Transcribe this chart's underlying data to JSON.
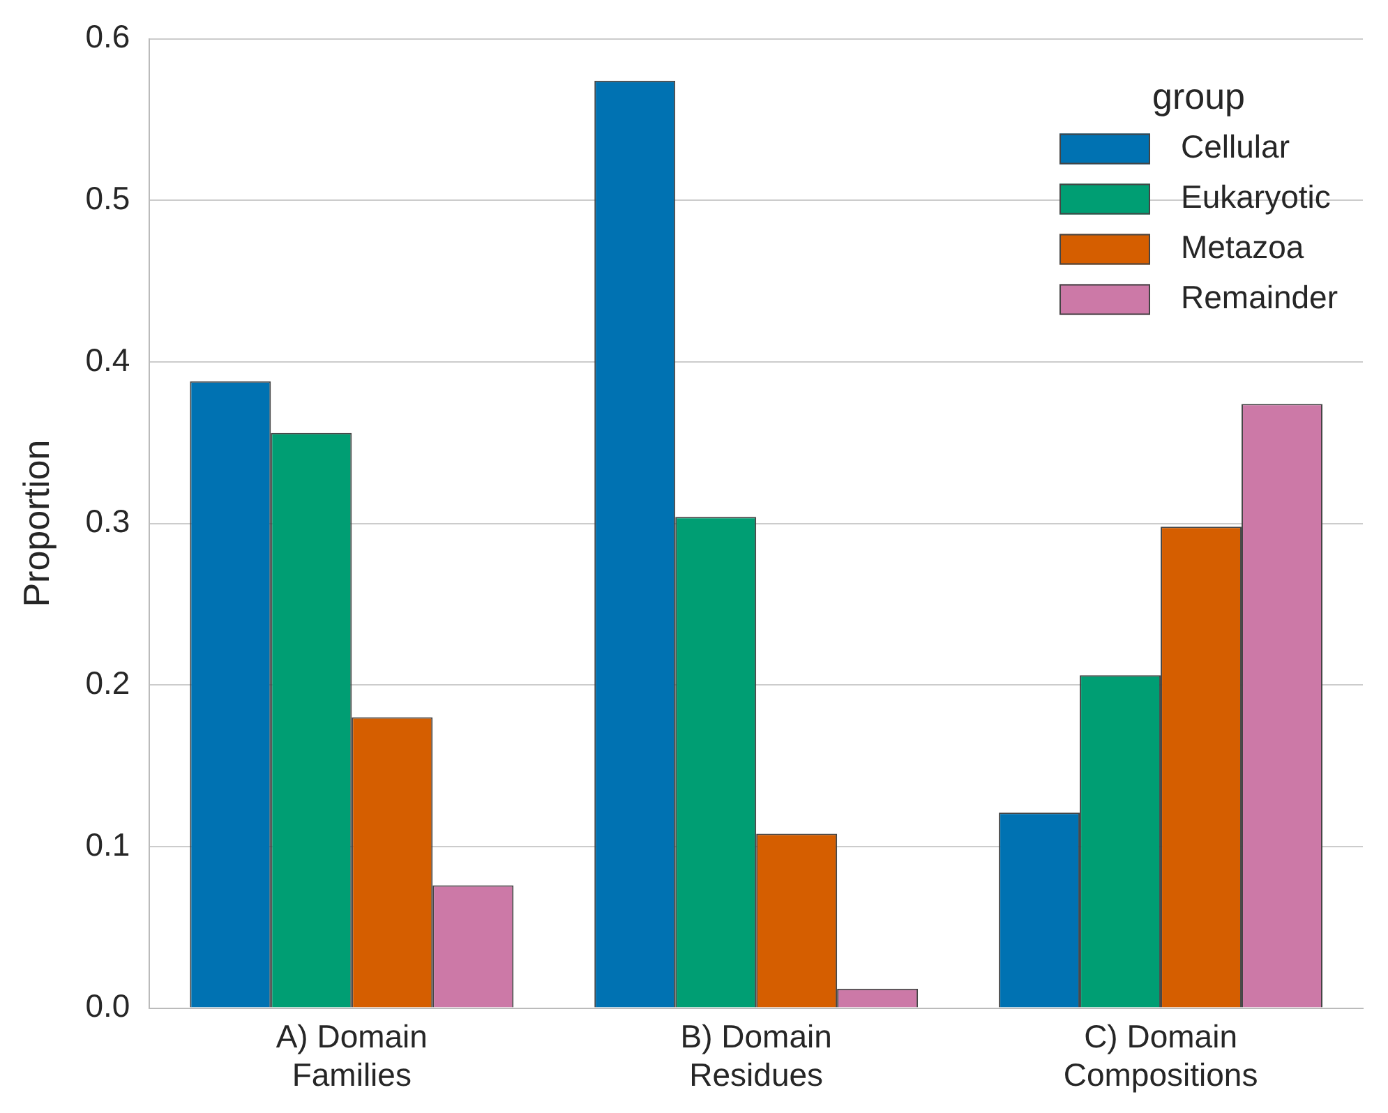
{
  "chart_data": {
    "type": "bar",
    "ylabel": "Proportion",
    "legend_title": "group",
    "categories": [
      "A) Domain Families",
      "B) Domain Residues",
      "C) Domain Compositions"
    ],
    "series": [
      {
        "name": "Cellular",
        "color": "#0072b2",
        "values": [
          0.388,
          0.574,
          0.121
        ]
      },
      {
        "name": "Eukaryotic",
        "color": "#009e73",
        "values": [
          0.356,
          0.304,
          0.206
        ]
      },
      {
        "name": "Metazoa",
        "color": "#d55e00",
        "values": [
          0.18,
          0.108,
          0.298
        ]
      },
      {
        "name": "Remainder",
        "color": "#cc79a7",
        "values": [
          0.076,
          0.012,
          0.374
        ]
      }
    ],
    "ylim": [
      0,
      0.6
    ],
    "yticks": [
      {
        "value": 0,
        "label": "0.0"
      },
      0.1,
      0.2,
      0.3,
      0.4,
      0.5,
      0.6
    ],
    "grid": "y",
    "legend": "top right"
  }
}
